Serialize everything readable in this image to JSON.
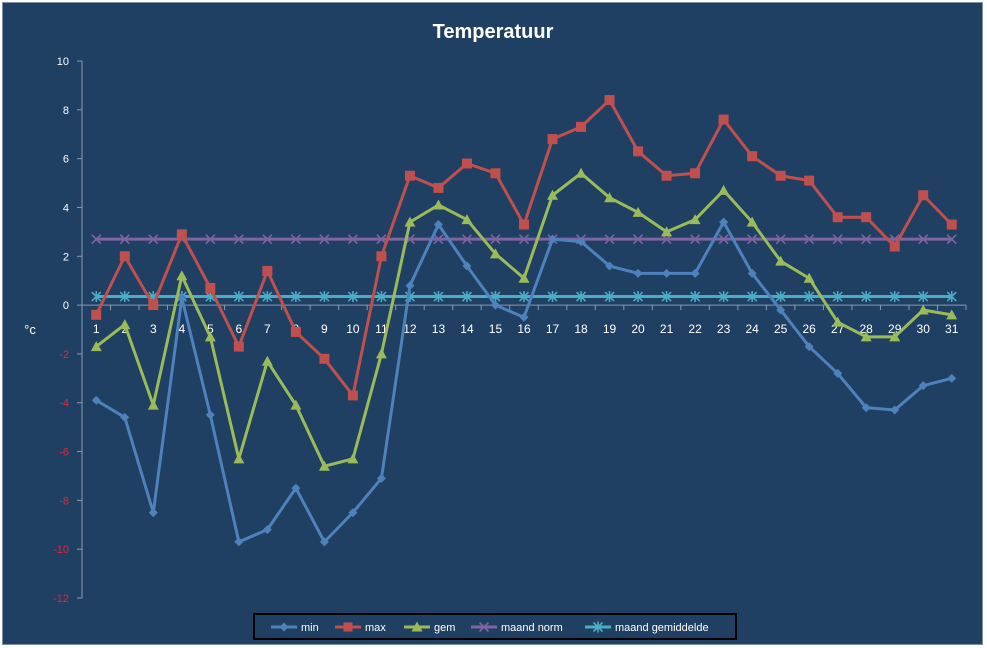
{
  "chart_data": {
    "type": "line",
    "title": "Temperatuur",
    "ylabel": "°c",
    "xlabel": "",
    "ylim": [
      -12,
      10
    ],
    "yticks": [
      10,
      8,
      6,
      4,
      2,
      0,
      -2,
      -4,
      -6,
      -8,
      -10,
      -12
    ],
    "categories": [
      "1",
      "2",
      "3",
      "4",
      "5",
      "6",
      "7",
      "8",
      "9",
      "10",
      "11",
      "12",
      "13",
      "14",
      "15",
      "16",
      "17",
      "18",
      "19",
      "20",
      "21",
      "22",
      "23",
      "24",
      "25",
      "26",
      "27",
      "28",
      "29",
      "30",
      "31"
    ],
    "grid": false,
    "legend_position": "bottom",
    "series": [
      {
        "name": "min",
        "color": "#4f81bd",
        "marker": "diamond",
        "values": [
          -3.9,
          -4.6,
          -8.5,
          0.3,
          -4.5,
          -9.7,
          -9.2,
          -7.5,
          -9.7,
          -8.5,
          -7.1,
          0.8,
          3.3,
          1.6,
          0.0,
          -0.5,
          2.7,
          2.6,
          1.6,
          1.3,
          1.3,
          1.3,
          3.4,
          1.3,
          -0.2,
          -1.7,
          -2.8,
          -4.2,
          -4.3,
          -3.3,
          -3.0
        ]
      },
      {
        "name": "max",
        "color": "#c0504d",
        "marker": "square",
        "values": [
          -0.4,
          2.0,
          0.0,
          2.9,
          0.7,
          -1.7,
          1.4,
          -1.1,
          -2.2,
          -3.7,
          2.0,
          5.3,
          4.8,
          5.8,
          5.4,
          3.3,
          6.8,
          7.3,
          8.4,
          6.3,
          5.3,
          5.4,
          7.6,
          6.1,
          5.3,
          5.1,
          3.6,
          3.6,
          2.4,
          4.5,
          3.3
        ]
      },
      {
        "name": "gem",
        "color": "#9bbb59",
        "marker": "triangle",
        "values": [
          -1.7,
          -0.8,
          -4.1,
          1.2,
          -1.3,
          -6.3,
          -2.3,
          -4.1,
          -6.6,
          -6.3,
          -2.0,
          3.4,
          4.1,
          3.5,
          2.1,
          1.1,
          4.5,
          5.4,
          4.4,
          3.8,
          3.0,
          3.5,
          4.7,
          3.4,
          1.8,
          1.1,
          -0.7,
          -1.3,
          -1.3,
          -0.2,
          -0.4
        ]
      },
      {
        "name": "maand norm",
        "color": "#8064a2",
        "marker": "x",
        "values": [
          2.7,
          2.7,
          2.7,
          2.7,
          2.7,
          2.7,
          2.7,
          2.7,
          2.7,
          2.7,
          2.7,
          2.7,
          2.7,
          2.7,
          2.7,
          2.7,
          2.7,
          2.7,
          2.7,
          2.7,
          2.7,
          2.7,
          2.7,
          2.7,
          2.7,
          2.7,
          2.7,
          2.7,
          2.7,
          2.7,
          2.7
        ]
      },
      {
        "name": "maand gemiddelde",
        "color": "#4bacc6",
        "marker": "star",
        "values": [
          0.35,
          0.35,
          0.35,
          0.35,
          0.35,
          0.35,
          0.35,
          0.35,
          0.35,
          0.35,
          0.35,
          0.35,
          0.35,
          0.35,
          0.35,
          0.35,
          0.35,
          0.35,
          0.35,
          0.35,
          0.35,
          0.35,
          0.35,
          0.35,
          0.35,
          0.35,
          0.35,
          0.35,
          0.35,
          0.35,
          0.35
        ]
      }
    ]
  }
}
